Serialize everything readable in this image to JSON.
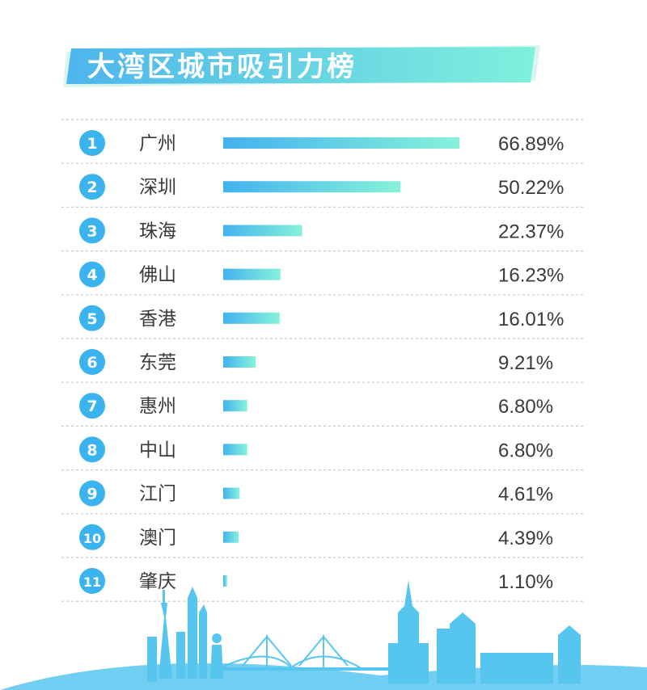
{
  "title": "大湾区城市吸引力榜",
  "colors": {
    "title_gradient_start": "#4db5ec",
    "title_gradient_end": "#7ff0dc",
    "bar_gradient_start": "#43b2ee",
    "bar_gradient_end": "#86f2da",
    "rank_circle": "#3ab3ee",
    "divider": "#c9c9c9",
    "skyline": "#56c6ee"
  },
  "chart_data": {
    "type": "bar",
    "orientation": "horizontal",
    "title": "大湾区城市吸引力榜",
    "unit": "%",
    "ranks": [
      "1",
      "2",
      "3",
      "4",
      "5",
      "6",
      "7",
      "8",
      "9",
      "10",
      "11"
    ],
    "categories": [
      "广州",
      "深圳",
      "珠海",
      "佛山",
      "香港",
      "东莞",
      "惠州",
      "中山",
      "江门",
      "澳门",
      "肇庆"
    ],
    "values": [
      66.89,
      50.22,
      22.37,
      16.23,
      16.01,
      9.21,
      6.8,
      6.8,
      4.61,
      4.39,
      1.1
    ],
    "labels": [
      "66.89%",
      "50.22%",
      "22.37%",
      "16.23%",
      "16.01%",
      "9.21%",
      "6.80%",
      "6.80%",
      "4.61%",
      "4.39%",
      "1.10%"
    ],
    "xlim": [
      0,
      66.89
    ]
  }
}
